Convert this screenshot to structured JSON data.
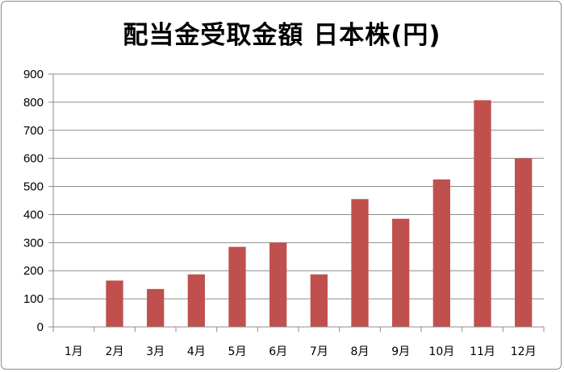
{
  "chart_data": {
    "type": "bar",
    "title": "配当金受取金額 日本株(円)",
    "categories": [
      "1月",
      "2月",
      "3月",
      "4月",
      "5月",
      "6月",
      "7月",
      "8月",
      "9月",
      "10月",
      "11月",
      "12月"
    ],
    "values": [
      0,
      165,
      135,
      187,
      285,
      300,
      187,
      455,
      385,
      525,
      807,
      600
    ],
    "ylim": [
      0,
      900
    ],
    "yticks": [
      0,
      100,
      200,
      300,
      400,
      500,
      600,
      700,
      800,
      900
    ],
    "xlabel": "",
    "ylabel": "",
    "grid": true,
    "legend": "none",
    "bar_color": "#c0504d"
  }
}
